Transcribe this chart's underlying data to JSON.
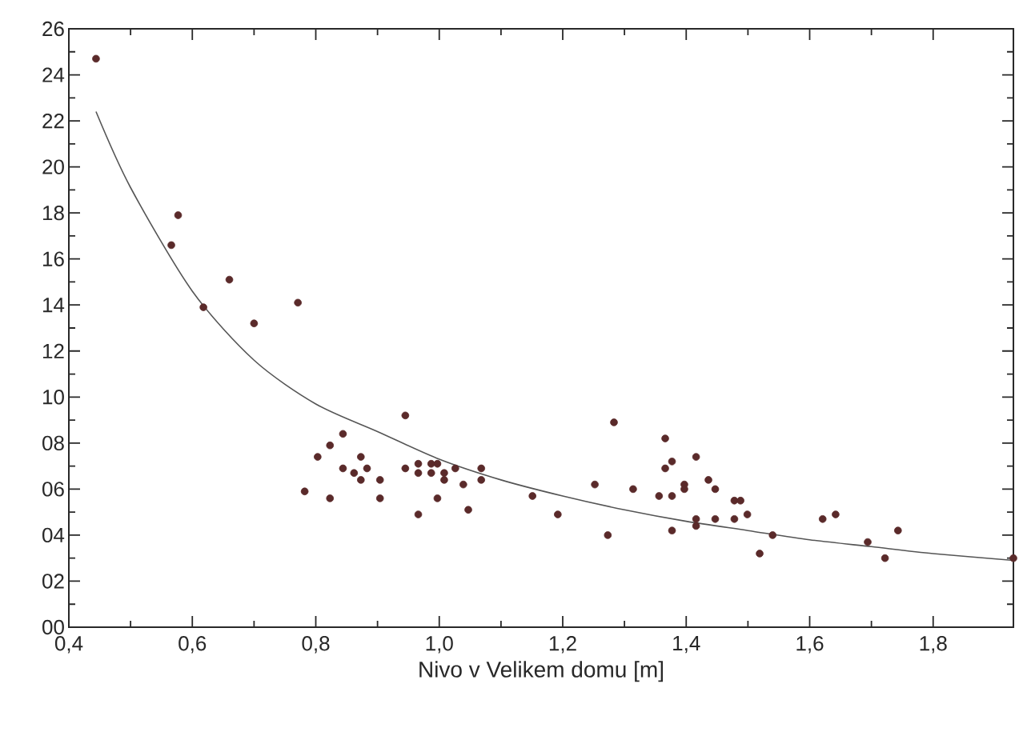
{
  "chart_data": {
    "type": "scatter",
    "xlabel": "Nivo v Velikem domu [m]",
    "xlim": [
      0.4,
      1.93
    ],
    "xticks": [
      {
        "value": 0.4,
        "label": "0,4"
      },
      {
        "value": 0.6,
        "label": "0,6"
      },
      {
        "value": 0.8,
        "label": "0,8"
      },
      {
        "value": 1.0,
        "label": "1,0"
      },
      {
        "value": 1.2,
        "label": "1,2"
      },
      {
        "value": 1.4,
        "label": "1,4"
      },
      {
        "value": 1.6,
        "label": "1,6"
      },
      {
        "value": 1.8,
        "label": "1,8"
      }
    ],
    "ylim": [
      0,
      26
    ],
    "yticks": [
      {
        "value": 0,
        "label": "00"
      },
      {
        "value": 2,
        "label": "02"
      },
      {
        "value": 4,
        "label": "04"
      },
      {
        "value": 6,
        "label": "06"
      },
      {
        "value": 8,
        "label": "08"
      },
      10,
      12,
      14,
      16,
      18,
      20,
      22,
      24,
      26
    ],
    "grid": false,
    "series": [
      {
        "marker": "circle",
        "color": "#5a2a2a",
        "x": [
          0.444,
          0.577,
          0.566,
          0.618,
          0.66,
          0.7,
          0.771,
          0.782,
          0.803,
          0.823,
          0.823,
          0.844,
          0.844,
          0.862,
          0.873,
          0.873,
          0.883,
          0.904,
          0.904,
          0.945,
          0.945,
          0.966,
          0.966,
          0.966,
          0.987,
          0.997,
          0.987,
          0.997,
          1.008,
          1.008,
          1.026,
          1.039,
          1.047,
          1.068,
          1.068,
          1.151,
          1.192,
          1.252,
          1.273,
          1.283,
          1.314,
          1.356,
          1.366,
          1.366,
          1.377,
          1.377,
          1.377,
          1.397,
          1.397,
          1.416,
          1.416,
          1.416,
          1.436,
          1.447,
          1.447,
          1.478,
          1.488,
          1.478,
          1.499,
          1.519,
          1.54,
          1.621,
          1.642,
          1.694,
          1.722,
          1.743,
          1.93
        ],
        "values": [
          24.7,
          17.9,
          16.6,
          13.9,
          15.1,
          13.2,
          14.1,
          5.9,
          7.4,
          7.9,
          5.6,
          8.4,
          6.9,
          6.7,
          7.4,
          6.4,
          6.9,
          6.4,
          5.6,
          9.2,
          6.9,
          7.1,
          6.7,
          4.9,
          7.1,
          7.1,
          6.7,
          5.6,
          6.7,
          6.4,
          6.9,
          6.2,
          5.1,
          6.9,
          6.4,
          5.7,
          4.9,
          6.2,
          4.0,
          8.9,
          6.0,
          5.7,
          8.2,
          6.9,
          7.2,
          5.7,
          4.2,
          6.2,
          6.0,
          7.4,
          4.7,
          4.4,
          6.4,
          6.0,
          4.7,
          5.5,
          5.5,
          4.7,
          4.9,
          3.2,
          4.0,
          4.7,
          4.9,
          3.7,
          3.0,
          4.2,
          3.0
        ]
      },
      {
        "type": "line",
        "marker": "none",
        "line_style": "solid",
        "color": "#555555",
        "x": [
          0.444,
          0.5,
          0.6,
          0.7,
          0.8,
          0.9,
          1.0,
          1.1,
          1.2,
          1.3,
          1.4,
          1.5,
          1.6,
          1.7,
          1.8,
          1.93
        ],
        "values": [
          22.4,
          19.1,
          14.6,
          11.6,
          9.7,
          8.5,
          7.3,
          6.4,
          5.7,
          5.1,
          4.6,
          4.2,
          3.8,
          3.5,
          3.2,
          2.9
        ]
      }
    ]
  }
}
